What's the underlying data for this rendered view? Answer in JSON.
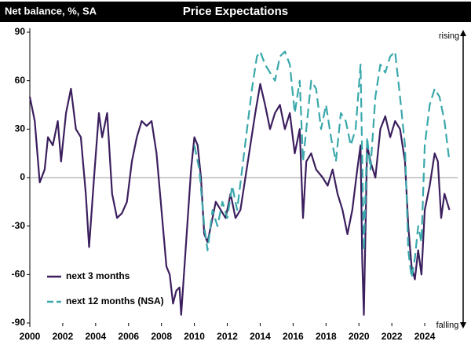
{
  "chart_data": {
    "type": "line",
    "title": "Price Expectations",
    "subtitle": "Net balance, %, SA",
    "annotations": [
      "rising",
      "falling"
    ],
    "xlim": [
      2000,
      2026
    ],
    "xticks": [
      2000,
      2002,
      2004,
      2006,
      2008,
      2010,
      2012,
      2014,
      2016,
      2018,
      2020,
      2022,
      2024
    ],
    "ylim": [
      -90,
      90
    ],
    "yticks": [
      -90,
      -60,
      -30,
      0,
      30,
      60,
      90
    ],
    "grid": false,
    "legend": "lower left",
    "series": [
      {
        "name": "next 3 months",
        "color": "#3b1f5e",
        "dashed": false,
        "x": [
          2000.0,
          2000.3,
          2000.6,
          2000.9,
          2001.1,
          2001.4,
          2001.7,
          2001.9,
          2002.2,
          2002.5,
          2002.8,
          2003.1,
          2003.4,
          2003.6,
          2003.9,
          2004.2,
          2004.4,
          2004.7,
          2005.0,
          2005.3,
          2005.6,
          2005.9,
          2006.2,
          2006.5,
          2006.8,
          2007.1,
          2007.4,
          2007.7,
          2008.0,
          2008.3,
          2008.5,
          2008.7,
          2008.9,
          2009.1,
          2009.2,
          2009.4,
          2009.6,
          2009.8,
          2010.0,
          2010.2,
          2010.4,
          2010.6,
          2010.8,
          2011.0,
          2011.3,
          2011.6,
          2011.9,
          2012.2,
          2012.5,
          2012.8,
          2013.1,
          2013.4,
          2013.7,
          2014.0,
          2014.3,
          2014.6,
          2014.9,
          2015.2,
          2015.5,
          2015.8,
          2016.1,
          2016.4,
          2016.6,
          2016.8,
          2017.1,
          2017.4,
          2017.8,
          2018.1,
          2018.4,
          2018.7,
          2019.0,
          2019.3,
          2019.6,
          2019.9,
          2020.1,
          2020.2,
          2020.3,
          2020.5,
          2020.7,
          2021.0,
          2021.3,
          2021.6,
          2021.9,
          2022.2,
          2022.5,
          2022.8,
          2023.0,
          2023.2,
          2023.4,
          2023.6,
          2023.8,
          2024.0,
          2024.3,
          2024.6,
          2024.8,
          2025.0,
          2025.2,
          2025.5
        ],
        "values": [
          50,
          35,
          -3,
          5,
          25,
          20,
          35,
          10,
          40,
          55,
          30,
          25,
          -10,
          -43,
          0,
          40,
          25,
          40,
          -10,
          -25,
          -22,
          -15,
          10,
          25,
          35,
          32,
          35,
          15,
          -20,
          -55,
          -60,
          -78,
          -70,
          -68,
          -85,
          -55,
          -25,
          5,
          25,
          20,
          0,
          -35,
          -40,
          -30,
          -15,
          -20,
          -25,
          -10,
          -25,
          -20,
          0,
          20,
          40,
          58,
          45,
          30,
          40,
          45,
          30,
          40,
          15,
          30,
          -25,
          10,
          15,
          5,
          0,
          -5,
          5,
          -10,
          -20,
          -35,
          -20,
          5,
          20,
          -50,
          -85,
          20,
          10,
          0,
          30,
          38,
          25,
          35,
          30,
          10,
          -30,
          -55,
          -63,
          -45,
          -60,
          -20,
          -5,
          15,
          10,
          -25,
          -10,
          -20
        ]
      },
      {
        "name": "next 12 months (NSA)",
        "color": "#3aa8ab",
        "dashed": true,
        "x": [
          2010.0,
          2010.3,
          2010.6,
          2010.8,
          2011.1,
          2011.4,
          2011.7,
          2012.0,
          2012.3,
          2012.6,
          2012.9,
          2013.2,
          2013.5,
          2013.8,
          2014.0,
          2014.3,
          2014.6,
          2014.9,
          2015.2,
          2015.5,
          2015.8,
          2016.1,
          2016.4,
          2016.6,
          2016.9,
          2017.1,
          2017.4,
          2017.7,
          2018.0,
          2018.3,
          2018.6,
          2018.9,
          2019.2,
          2019.5,
          2019.8,
          2020.1,
          2020.3,
          2020.5,
          2020.7,
          2021.0,
          2021.3,
          2021.6,
          2021.9,
          2022.2,
          2022.5,
          2022.8,
          2023.0,
          2023.2,
          2023.4,
          2023.6,
          2023.8,
          2024.0,
          2024.3,
          2024.6,
          2024.9,
          2025.2,
          2025.5
        ],
        "values": [
          20,
          5,
          -30,
          -45,
          -20,
          -30,
          -15,
          -25,
          -5,
          -20,
          5,
          30,
          55,
          75,
          78,
          70,
          65,
          60,
          75,
          78,
          70,
          40,
          60,
          10,
          40,
          60,
          55,
          30,
          45,
          25,
          10,
          40,
          35,
          20,
          30,
          70,
          -45,
          25,
          5,
          50,
          70,
          65,
          75,
          78,
          50,
          20,
          -45,
          -62,
          -50,
          -30,
          -40,
          20,
          45,
          55,
          50,
          35,
          10
        ]
      }
    ]
  }
}
